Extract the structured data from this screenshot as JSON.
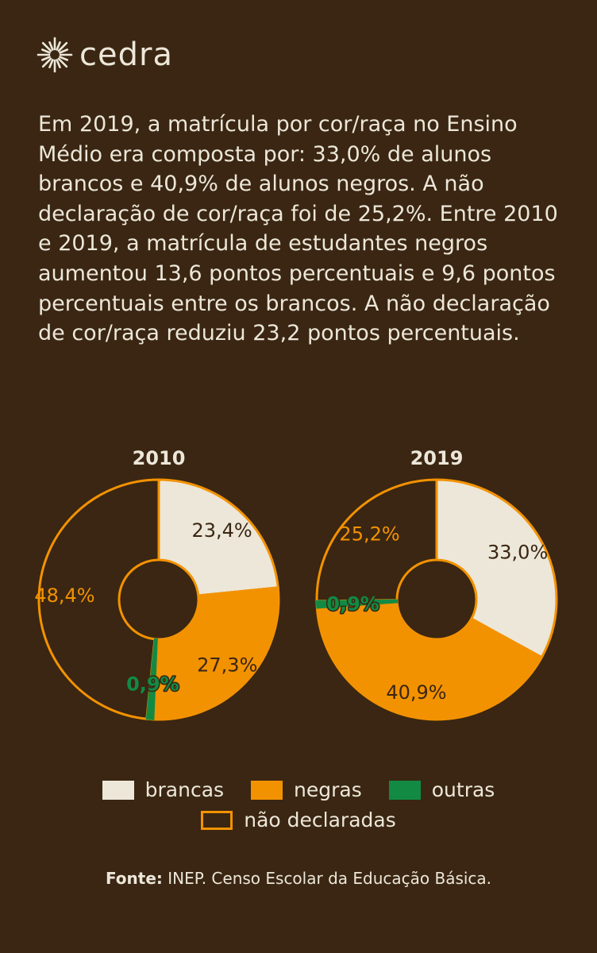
{
  "brand": {
    "name": "cedra",
    "icon": "sunburst-logo-icon"
  },
  "intro_text": "Em 2019, a matrícula por cor/raça no Ensino Médio era composta por: 33,0% de alunos brancos e 40,9% de alunos negros. A não declaração de cor/raça foi de 25,2%. Entre 2010 e 2019, a matrícula de estudantes negros aumentou 13,6 pontos percentuais e 9,6 pontos percentuais entre os brancos.  A não declaração de cor/raça reduziu 23,2 pontos percentuais.",
  "colors": {
    "background": "#3a2612",
    "brancas": "#ece7d9",
    "negras": "#f39200",
    "outras": "#128a44",
    "nao_declaradas_stroke": "#f39200",
    "text_light": "#ece7d9",
    "text_dark": "#3a2612"
  },
  "chart_data": [
    {
      "type": "pie",
      "title": "2010",
      "categories": [
        "brancas",
        "negras",
        "outras",
        "não declaradas"
      ],
      "values": [
        23.4,
        27.3,
        0.9,
        48.4
      ],
      "labels": [
        "23,4%",
        "27,3%",
        "0,9%",
        "48,4%"
      ]
    },
    {
      "type": "pie",
      "title": "2019",
      "categories": [
        "brancas",
        "negras",
        "outras",
        "não declaradas"
      ],
      "values": [
        33.0,
        40.9,
        0.9,
        25.2
      ],
      "labels": [
        "33,0%",
        "40,9%",
        "0,9%",
        "25,2%"
      ]
    }
  ],
  "legend": {
    "brancas": "brancas",
    "negras": "negras",
    "outras": "outras",
    "nao_declaradas": "não declaradas"
  },
  "source": {
    "label": "Fonte:",
    "text": "INEP. Censo Escolar da Educação Básica."
  }
}
